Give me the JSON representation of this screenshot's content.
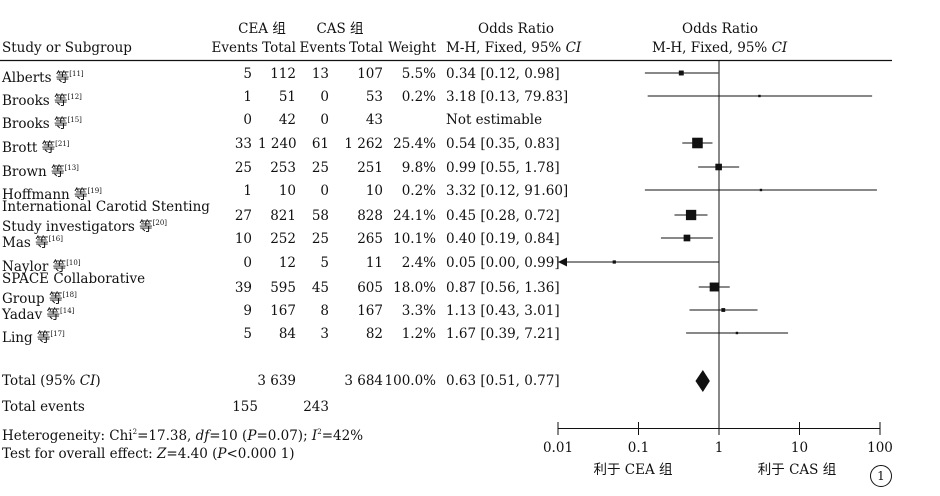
{
  "header": {
    "group_cea": "CEA 组",
    "group_cas": "CAS 组",
    "odds_ratio_left": "Odds Ratio",
    "odds_ratio_right": "Odds Ratio",
    "study_col": "Study or Subgroup",
    "events": "Events",
    "total": "Total",
    "weight": "Weight",
    "method_left": "M-H, Fixed, 95% ",
    "method_right": "M-H, Fixed, 95% ",
    "ci": "CI"
  },
  "chart_data": {
    "type": "forest",
    "x_axis": {
      "scale": "log",
      "ticks": [
        0.01,
        0.1,
        1,
        10,
        100
      ],
      "tick_labels": [
        "0.01",
        "0.1",
        "1",
        "10",
        "100"
      ]
    },
    "axis_label_left": "利于 CEA 组",
    "axis_label_right": "利于 CAS 组",
    "studies": [
      {
        "name": "Alberts 等",
        "ref": "[11]",
        "cea_events": "5",
        "cea_total": "112",
        "cas_events": "13",
        "cas_total": "107",
        "weight": "5.5%",
        "or_text": "0.34 [0.12, 0.98]",
        "or": 0.34,
        "lo": 0.12,
        "hi": 0.98,
        "w": 5.5
      },
      {
        "name": "Brooks 等",
        "ref": "[12]",
        "cea_events": "1",
        "cea_total": "51",
        "cas_events": "0",
        "cas_total": "53",
        "weight": "0.2%",
        "or_text": "3.18 [0.13, 79.83]",
        "or": 3.18,
        "lo": 0.13,
        "hi": 79.83,
        "w": 0.2
      },
      {
        "name": "Brooks 等",
        "ref": "[15]",
        "cea_events": "0",
        "cea_total": "42",
        "cas_events": "0",
        "cas_total": "43",
        "weight": "",
        "or_text": "Not estimable",
        "or": null,
        "lo": null,
        "hi": null,
        "w": 0
      },
      {
        "name": "Brott 等",
        "ref": "[21]",
        "cea_events": "33",
        "cea_total": "1 240",
        "cas_events": "61",
        "cas_total": "1 262",
        "weight": "25.4%",
        "or_text": "0.54 [0.35, 0.83]",
        "or": 0.54,
        "lo": 0.35,
        "hi": 0.83,
        "w": 25.4
      },
      {
        "name": "Brown 等",
        "ref": "[13]",
        "cea_events": "25",
        "cea_total": "253",
        "cas_events": "25",
        "cas_total": "251",
        "weight": "9.8%",
        "or_text": "0.99 [0.55, 1.78]",
        "or": 0.99,
        "lo": 0.55,
        "hi": 1.78,
        "w": 9.8
      },
      {
        "name": "Hoffmann 等",
        "ref": "[19]",
        "cea_events": "1",
        "cea_total": "10",
        "cas_events": "0",
        "cas_total": "10",
        "weight": "0.2%",
        "or_text": "3.32 [0.12, 91.60]",
        "or": 3.32,
        "lo": 0.12,
        "hi": 91.6,
        "w": 0.2
      },
      {
        "name": "International Carotid Stenting",
        "name2": "Study investigators 等",
        "ref": "[20]",
        "cea_events": "27",
        "cea_total": "821",
        "cas_events": "58",
        "cas_total": "828",
        "weight": "24.1%",
        "or_text": "0.45 [0.28, 0.72]",
        "or": 0.45,
        "lo": 0.28,
        "hi": 0.72,
        "w": 24.1
      },
      {
        "name": "Mas 等",
        "ref": "[16]",
        "cea_events": "10",
        "cea_total": "252",
        "cas_events": "25",
        "cas_total": "265",
        "weight": "10.1%",
        "or_text": "0.40 [0.19, 0.84]",
        "or": 0.4,
        "lo": 0.19,
        "hi": 0.84,
        "w": 10.1
      },
      {
        "name": "Naylor 等",
        "ref": "[10]",
        "cea_events": "0",
        "cea_total": "12",
        "cas_events": "5",
        "cas_total": "11",
        "weight": "2.4%",
        "or_text": "0.05 [0.00, 0.99]",
        "or": 0.05,
        "lo": 0.0,
        "hi": 0.99,
        "w": 2.4
      },
      {
        "name": "SPACE Collaborative",
        "name2": "Group 等",
        "ref": "[18]",
        "cea_events": "39",
        "cea_total": "595",
        "cas_events": "45",
        "cas_total": "605",
        "weight": "18.0%",
        "or_text": "0.87 [0.56, 1.36]",
        "or": 0.87,
        "lo": 0.56,
        "hi": 1.36,
        "w": 18.0
      },
      {
        "name": "Yadav 等",
        "ref": "[14]",
        "cea_events": "9",
        "cea_total": "167",
        "cas_events": "8",
        "cas_total": "167",
        "weight": "3.3%",
        "or_text": "1.13 [0.43, 3.01]",
        "or": 1.13,
        "lo": 0.43,
        "hi": 3.01,
        "w": 3.3
      },
      {
        "name": "Ling 等",
        "ref": "[17]",
        "cea_events": "5",
        "cea_total": "84",
        "cas_events": "3",
        "cas_total": "82",
        "weight": "1.2%",
        "or_text": "1.67 [0.39, 7.21]",
        "or": 1.67,
        "lo": 0.39,
        "hi": 7.21,
        "w": 1.2
      }
    ],
    "total": {
      "label_prefix": "Total (95% ",
      "label_ci": "CI",
      "label_suffix": ")",
      "cea_total": "3 639",
      "cas_total": "3 684",
      "weight": "100.0%",
      "or_text": "0.63 [0.51, 0.77]",
      "or": 0.63,
      "lo": 0.51,
      "hi": 0.77
    },
    "total_events": {
      "label": "Total events",
      "cea": "155",
      "cas": "243"
    },
    "heterogeneity": {
      "prefix": "Heterogeneity: Chi",
      "sup2": "2",
      "chi_value": "=17.38, ",
      "df": "df",
      "df_value": "=10 (",
      "p": "P",
      "p_value": "=0.07); ",
      "i": "I",
      "i_sup": "2",
      "i_value": "=42%"
    },
    "overall_effect": {
      "prefix": "Test for overall effect: ",
      "z": "Z",
      "z_value": "=4.40 (",
      "p": "P",
      "p_value": "<0.000 1)"
    }
  },
  "figure_marker": "1"
}
